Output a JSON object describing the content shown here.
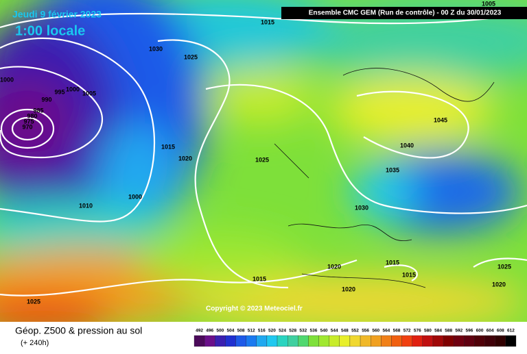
{
  "header": {
    "date": "Jeudi 9 février 2023",
    "time": "1:00 locale",
    "model": "Ensemble CMC GEM  (Run de contrôle)  -  00 Z du 30/01/2023"
  },
  "copyright": "Copyright © 2023 Meteociel.fr",
  "footer": {
    "title": "Géop. Z500 & pression au sol",
    "lead": "(+ 240h)"
  },
  "isobar_labels": [
    1005,
    1015,
    1030,
    1025,
    1000,
    995,
    990,
    1000,
    1005,
    985,
    980,
    975,
    970,
    1045,
    1040,
    1015,
    1020,
    1025,
    1035,
    1000,
    1010,
    1030,
    1015,
    1020,
    1015,
    1025,
    1015,
    1020,
    1020,
    1025
  ],
  "colorbar_labels": [
    492,
    496,
    500,
    504,
    508,
    512,
    516,
    520,
    524,
    528,
    532,
    536,
    540,
    544,
    548,
    552,
    556,
    560,
    564,
    568,
    572,
    576,
    580,
    584,
    588,
    592,
    596,
    600,
    604,
    608,
    612
  ]
}
